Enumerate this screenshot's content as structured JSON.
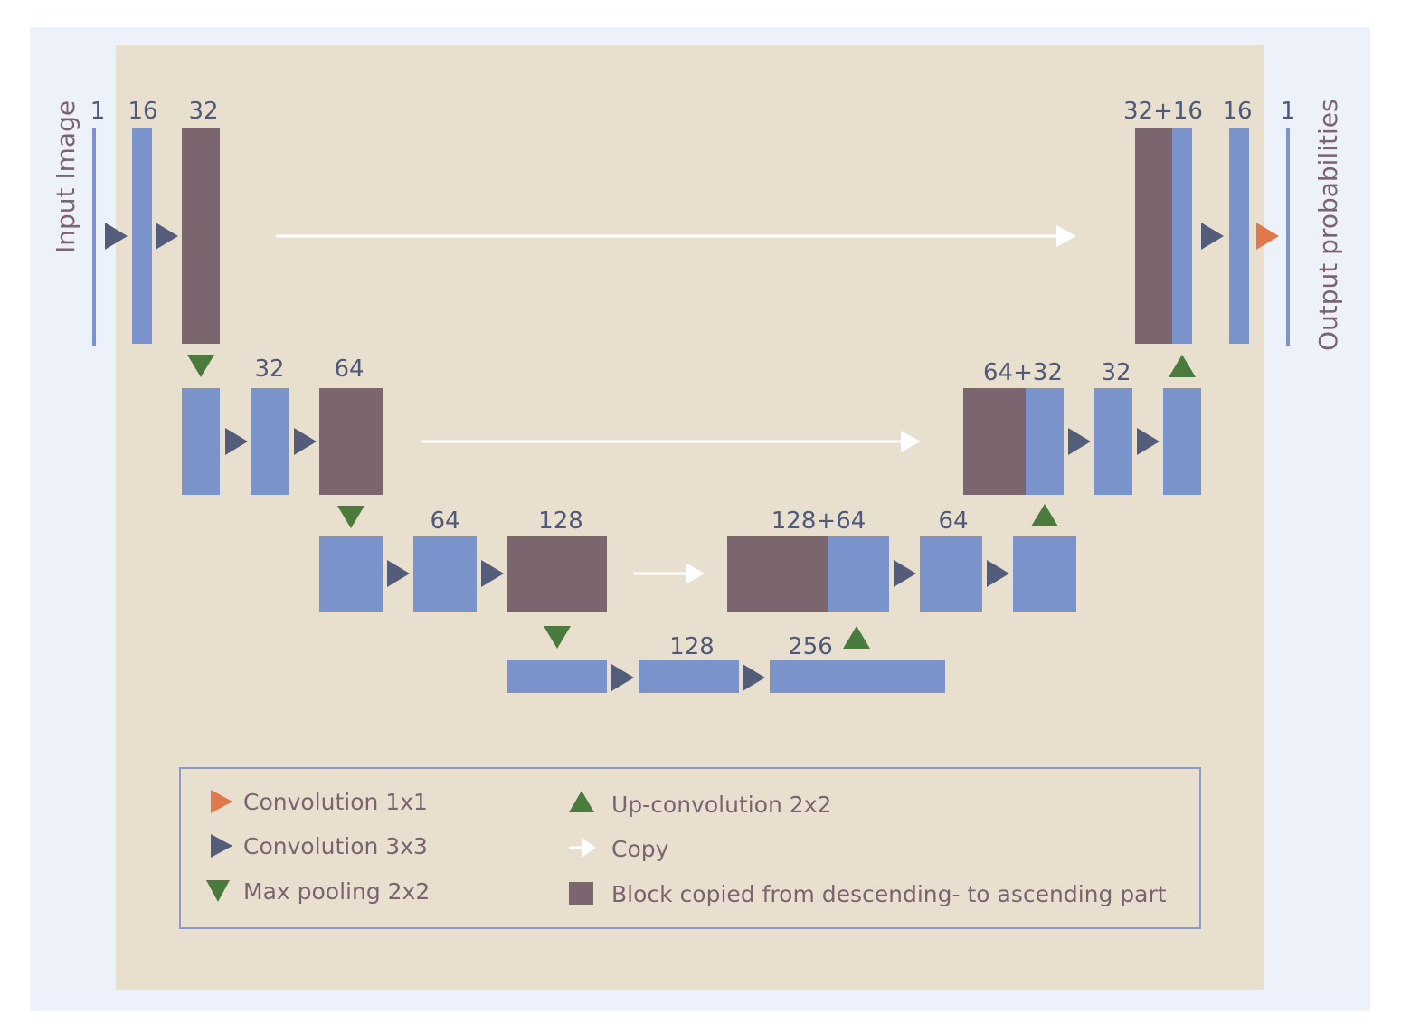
{
  "colors": {
    "outer_bg": "#edf1f9",
    "panel_bg": "#e9dfcf",
    "block_blue": "#7b93cb",
    "block_copied": "#7b6670",
    "conv3_arrow": "#535c78",
    "conv1_arrow": "#e0784e",
    "pool_arrow": "#4a7a3c",
    "copy_arrow": "#ffffff",
    "line_blue": "#7b93cb",
    "legend_border": "#8c9acb"
  },
  "side_labels": {
    "input": "Input Image",
    "output": "Output probabilities"
  },
  "channel_labels": {
    "l1_in": "1",
    "l1_c1": "16",
    "l1_c2": "32",
    "l2_c1": "32",
    "l2_c2": "64",
    "l3_c1": "64",
    "l3_c2": "128",
    "l4_c1": "128",
    "l4_c2": "256",
    "u3_cat": "128+64",
    "u3_c": "64",
    "u2_cat": "64+32",
    "u2_c": "32",
    "u1_cat": "32+16",
    "u1_c": "16",
    "u1_out": "1"
  },
  "legend": {
    "conv1": "Convolution 1x1",
    "conv3": "Convolution 3x3",
    "pool": "Max pooling 2x2",
    "upconv": "Up-convolution 2x2",
    "copy": "Copy",
    "copied_block": "Block copied from descending- to ascending part"
  }
}
